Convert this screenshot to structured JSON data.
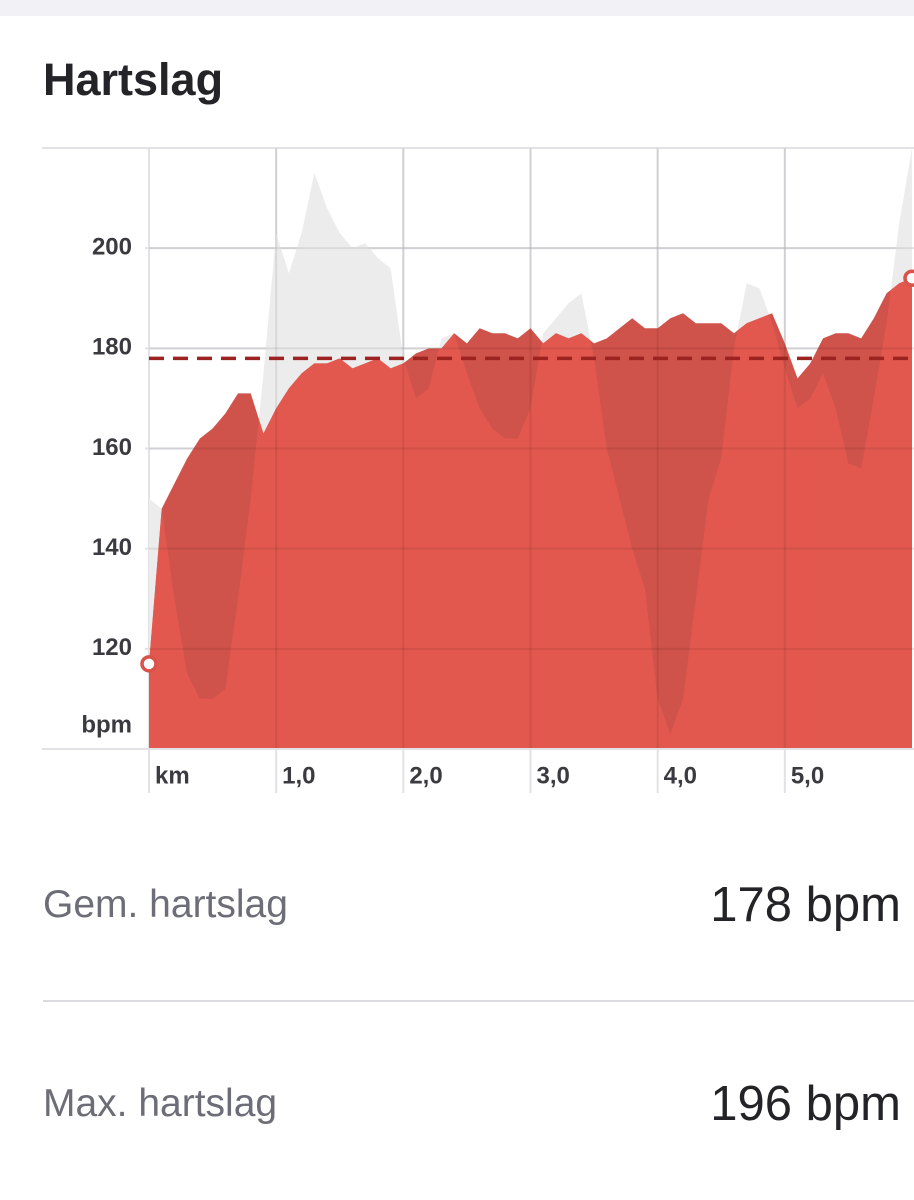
{
  "header": {
    "title": "Hartslag"
  },
  "chart_data": {
    "type": "area",
    "x": [
      0,
      0.1,
      0.2,
      0.3,
      0.4,
      0.5,
      0.6,
      0.7,
      0.8,
      0.9,
      1.0,
      1.1,
      1.2,
      1.3,
      1.4,
      1.5,
      1.6,
      1.7,
      1.8,
      1.9,
      2.0,
      2.1,
      2.2,
      2.3,
      2.4,
      2.5,
      2.6,
      2.7,
      2.8,
      2.9,
      3.0,
      3.1,
      3.2,
      3.3,
      3.4,
      3.5,
      3.6,
      3.7,
      3.8,
      3.9,
      4.0,
      4.1,
      4.2,
      4.3,
      4.4,
      4.5,
      4.6,
      4.7,
      4.8,
      4.9,
      5.0,
      5.1,
      5.2,
      5.3,
      5.4,
      5.5,
      5.6,
      5.7,
      5.8,
      5.9,
      6.0
    ],
    "series": [
      {
        "color": "#cf534a",
        "values": [
          117,
          148,
          153,
          158,
          162,
          164,
          167,
          171,
          171,
          163,
          168,
          172,
          175,
          177,
          177,
          178,
          176,
          177,
          178,
          176,
          177,
          179,
          180,
          180,
          183,
          181,
          184,
          183,
          183,
          182,
          184,
          181,
          183,
          182,
          183,
          181,
          182,
          184,
          186,
          184,
          184,
          186,
          187,
          185,
          185,
          185,
          183,
          185,
          186,
          187,
          181,
          174,
          177,
          182,
          183,
          183,
          182,
          186,
          191,
          193,
          194
        ]
      },
      {
        "color": "#ececec",
        "values": [
          150,
          148,
          130,
          115,
          110,
          110,
          112,
          130,
          150,
          175,
          203,
          195,
          203,
          215,
          208,
          203,
          200,
          201,
          198,
          196,
          178,
          170,
          172,
          182,
          183,
          175,
          168,
          164,
          162,
          162,
          168,
          183,
          186,
          189,
          191,
          178,
          160,
          150,
          140,
          132,
          110,
          103,
          110,
          130,
          150,
          158,
          180,
          193,
          192,
          185,
          176,
          168,
          170,
          175,
          168,
          157,
          156,
          170,
          185,
          205,
          220
        ]
      }
    ],
    "reference_line": 178,
    "xlim": [
      0,
      6
    ],
    "xticks": [
      {
        "value": 1,
        "label": "1,0"
      },
      {
        "value": 2,
        "label": "2,0"
      },
      {
        "value": 3,
        "label": "3,0"
      },
      {
        "value": 4,
        "label": "4,0"
      },
      {
        "value": 5,
        "label": "5,0"
      }
    ],
    "x_unit": "km",
    "ylim": [
      100,
      220
    ],
    "yticks": [
      120,
      140,
      160,
      180,
      200
    ],
    "y_unit": "bpm",
    "grid": true
  },
  "stats": {
    "rows": [
      [
        "Gem. hartslag",
        "178 bpm"
      ],
      [
        "Max. hartslag",
        "196 bpm"
      ]
    ]
  }
}
